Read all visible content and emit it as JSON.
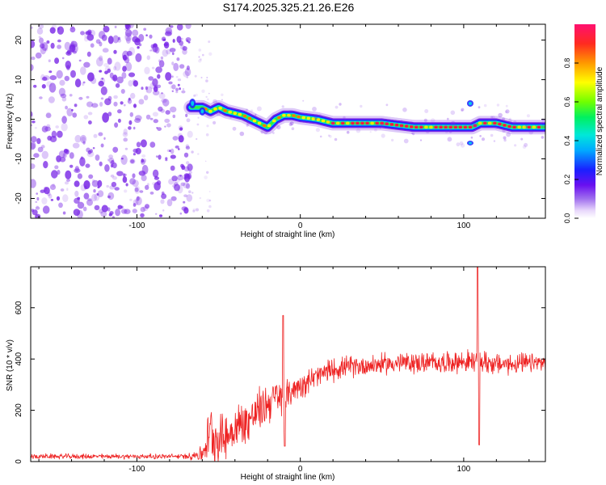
{
  "title": "S174.2025.325.21.26.E26",
  "colors": {
    "snr_line": "#ee2222",
    "spectro_dot": "#7a28e6",
    "axis": "#000000"
  },
  "chart_data": [
    {
      "type": "heatmap",
      "name": "spectrogram",
      "xlabel": "Height of straight line (km)",
      "ylabel": "Frequency (Hz)",
      "xlim": [
        -165,
        150
      ],
      "ylim": [
        -25,
        24
      ],
      "xticks": [
        -100,
        0,
        100
      ],
      "yticks": [
        -20,
        -10,
        0,
        10,
        20
      ],
      "noise_region_x": [
        -165,
        -67
      ],
      "ridge": {
        "x": [
          -67,
          -60,
          -55,
          -50,
          -45,
          -40,
          -35,
          -30,
          -25,
          -20,
          -15,
          -10,
          -5,
          0,
          10,
          20,
          30,
          40,
          50,
          60,
          70,
          80,
          90,
          100,
          105,
          110,
          115,
          120,
          130,
          140,
          150
        ],
        "freq": [
          3,
          3,
          2,
          3,
          2,
          1.5,
          1,
          0,
          -1,
          -2,
          0,
          1,
          1,
          0.5,
          0,
          -1,
          -1,
          -1,
          -1,
          -1.5,
          -2,
          -2,
          -2,
          -2,
          -2,
          -1,
          -1,
          -1,
          -2,
          -2,
          -2
        ]
      },
      "colorbar": {
        "label": "Normalized spectral amplitude",
        "ticks": [
          "0.0",
          "0.2",
          "0.4",
          "0.6",
          "0.8"
        ],
        "tick_values": [
          0.0,
          0.2,
          0.4,
          0.6,
          0.8
        ],
        "range": [
          0,
          1
        ]
      }
    },
    {
      "type": "line",
      "name": "snr",
      "xlabel": "Height of straight line (km)",
      "ylabel": "SNR (10 * v/v)",
      "xlim": [
        -165,
        150
      ],
      "ylim": [
        0,
        760
      ],
      "xticks": [
        -100,
        0,
        100
      ],
      "yticks": [
        0,
        200,
        400,
        600
      ],
      "envelope": {
        "x": [
          -165,
          -70,
          -60,
          -55,
          -50,
          -45,
          -40,
          -30,
          -20,
          -15,
          -10,
          -5,
          0,
          10,
          20,
          30,
          40,
          50,
          60,
          80,
          100,
          105,
          108,
          110,
          113,
          120,
          130,
          150
        ],
        "mean": [
          20,
          20,
          30,
          120,
          90,
          100,
          130,
          170,
          230,
          250,
          230,
          280,
          300,
          330,
          360,
          370,
          375,
          380,
          385,
          385,
          390,
          390,
          390,
          390,
          390,
          380,
          380,
          385
        ],
        "spread": [
          12,
          12,
          40,
          130,
          120,
          110,
          110,
          110,
          100,
          100,
          90,
          70,
          60,
          60,
          55,
          50,
          50,
          50,
          50,
          50,
          50,
          60,
          60,
          60,
          60,
          50,
          50,
          45
        ]
      },
      "spikes": [
        {
          "x": -10.5,
          "value": 570
        },
        {
          "x": -9.5,
          "value": 60
        },
        {
          "x": 108.5,
          "value": 760
        },
        {
          "x": 109.5,
          "value": 65
        }
      ]
    }
  ]
}
